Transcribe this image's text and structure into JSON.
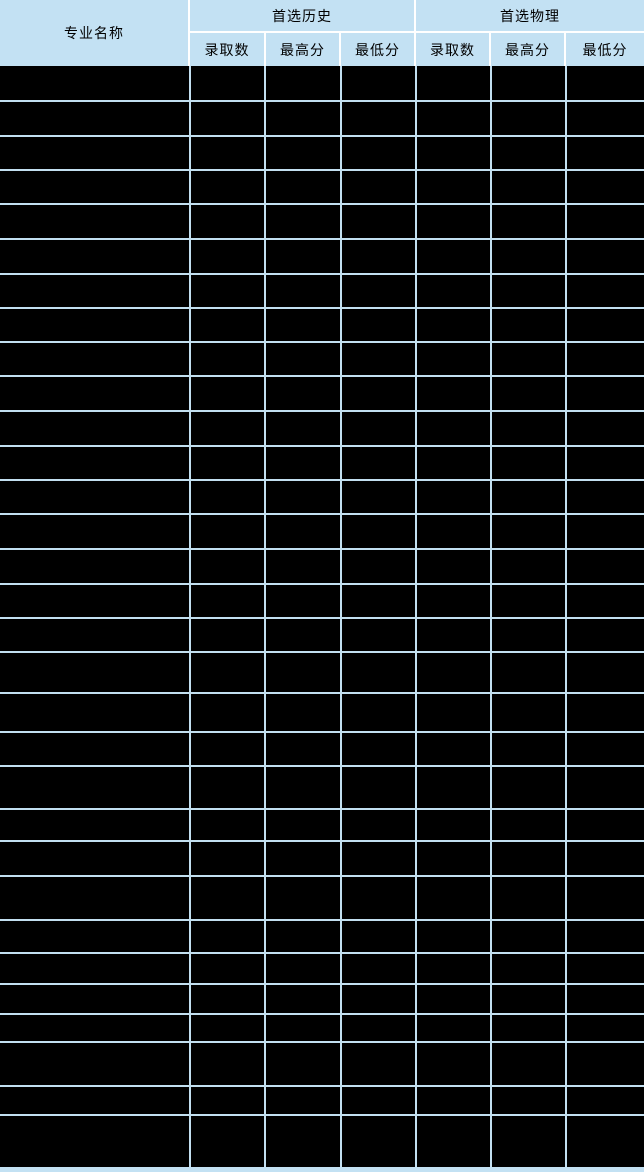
{
  "table": {
    "header": {
      "major_name": "专业名称",
      "groups": [
        {
          "label": "首选历史",
          "columns": [
            "录取数",
            "最高分",
            "最低分"
          ]
        },
        {
          "label": "首选物理",
          "columns": [
            "录取数",
            "最高分",
            "最低分"
          ]
        }
      ]
    },
    "body": {
      "rows": [
        {
          "cells": [
            "",
            "",
            "",
            "",
            "",
            "",
            ""
          ]
        },
        {
          "cells": [
            "",
            "",
            "",
            "",
            "",
            "",
            ""
          ]
        },
        {
          "cells": [
            "",
            "",
            "",
            "",
            "",
            "",
            ""
          ]
        },
        {
          "cells": [
            "",
            "",
            "",
            "",
            "",
            "",
            ""
          ]
        },
        {
          "cells": [
            "",
            "",
            "",
            "",
            "",
            "",
            ""
          ]
        },
        {
          "cells": [
            "",
            "",
            "",
            "",
            "",
            "",
            ""
          ]
        },
        {
          "cells": [
            "",
            "",
            "",
            "",
            "",
            "",
            ""
          ]
        },
        {
          "cells": [
            "",
            "",
            "",
            "",
            "",
            "",
            ""
          ]
        },
        {
          "cells": [
            "",
            "",
            "",
            "",
            "",
            "",
            ""
          ]
        },
        {
          "cells": [
            "",
            "",
            "",
            "",
            "",
            "",
            ""
          ]
        },
        {
          "cells": [
            "",
            "",
            "",
            "",
            "",
            "",
            ""
          ]
        },
        {
          "cells": [
            "",
            "",
            "",
            "",
            "",
            "",
            ""
          ]
        },
        {
          "cells": [
            "",
            "",
            "",
            "",
            "",
            "",
            ""
          ]
        },
        {
          "cells": [
            "",
            "",
            "",
            "",
            "",
            "",
            ""
          ]
        },
        {
          "cells": [
            "",
            "",
            "",
            "",
            "",
            "",
            ""
          ]
        },
        {
          "cells": [
            "",
            "",
            "",
            "",
            "",
            "",
            ""
          ]
        },
        {
          "cells": [
            "",
            "",
            "",
            "",
            "",
            "",
            ""
          ]
        },
        {
          "cells": [
            "",
            "",
            "",
            "",
            "",
            "",
            ""
          ]
        },
        {
          "cells": [
            "",
            "",
            "",
            "",
            "",
            "",
            ""
          ]
        },
        {
          "cells": [
            "",
            "",
            "",
            "",
            "",
            "",
            ""
          ]
        },
        {
          "cells": [
            "",
            "",
            "",
            "",
            "",
            "",
            ""
          ]
        },
        {
          "cells": [
            "",
            "",
            "",
            "",
            "",
            "",
            ""
          ]
        },
        {
          "cells": [
            "",
            "",
            "",
            "",
            "",
            "",
            ""
          ]
        },
        {
          "cells": [
            "",
            "",
            "",
            "",
            "",
            "",
            ""
          ]
        },
        {
          "cells": [
            "",
            "",
            "",
            "",
            "",
            "",
            ""
          ]
        },
        {
          "cells": [
            "",
            "",
            "",
            "",
            "",
            "",
            ""
          ]
        },
        {
          "cells": [
            "",
            "",
            "",
            "",
            "",
            "",
            ""
          ]
        },
        {
          "cells": [
            "",
            "",
            "",
            "",
            "",
            "",
            ""
          ]
        },
        {
          "cells": [
            "",
            "",
            "",
            "",
            "",
            "",
            ""
          ]
        },
        {
          "cells": [
            "",
            "",
            "",
            "",
            "",
            "",
            ""
          ]
        },
        {
          "cells": [
            "",
            "",
            "",
            "",
            "",
            "",
            ""
          ]
        }
      ]
    },
    "colors": {
      "header_bg": "#C3E1F3",
      "gridline": "#C2DFF0",
      "header_divider": "#FFFFFF",
      "body_bg": "#000000",
      "text": "#000000"
    }
  }
}
